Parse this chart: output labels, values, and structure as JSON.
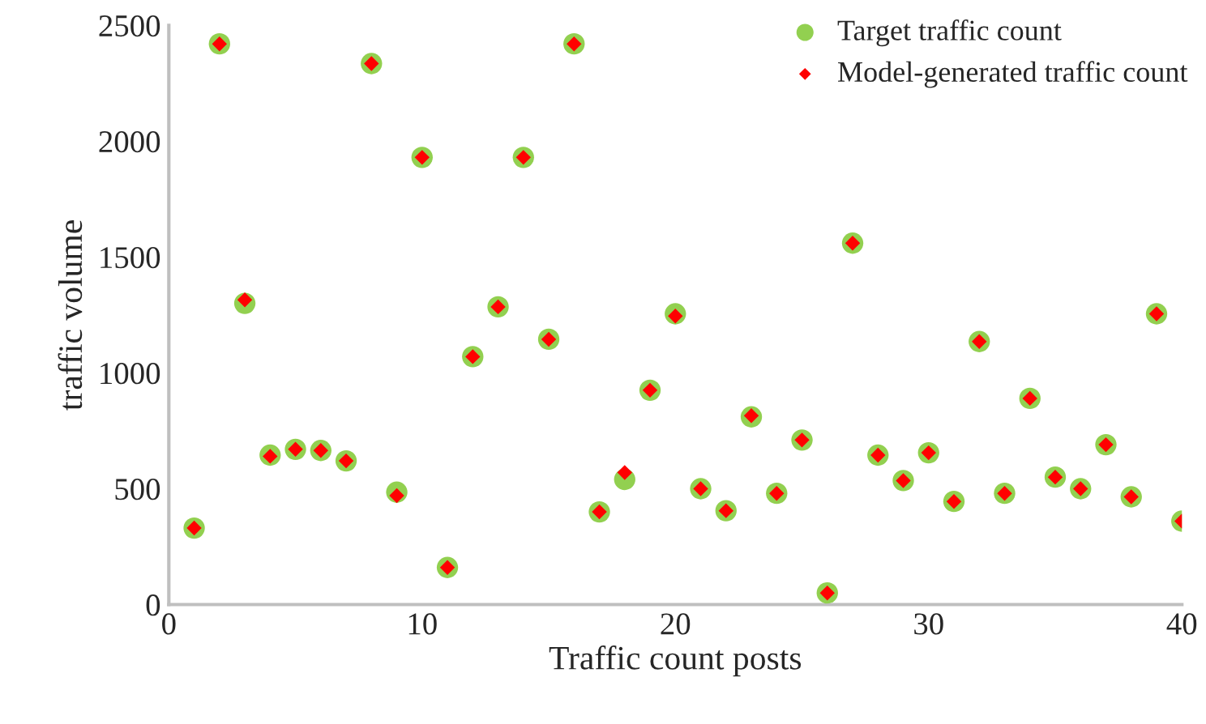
{
  "chart_data": {
    "type": "scatter",
    "xlabel": "Traffic count posts",
    "ylabel": "traffic volume",
    "x": [
      1,
      2,
      3,
      4,
      5,
      6,
      7,
      8,
      9,
      10,
      11,
      12,
      13,
      14,
      15,
      16,
      17,
      18,
      19,
      20,
      21,
      22,
      23,
      24,
      25,
      26,
      27,
      28,
      29,
      30,
      31,
      32,
      33,
      34,
      35,
      36,
      37,
      38,
      39,
      40
    ],
    "series": [
      {
        "name": "Target traffic count",
        "color": "#92d050",
        "marker": "circle",
        "values": [
          330,
          2420,
          1300,
          645,
          670,
          665,
          620,
          2335,
          485,
          1930,
          160,
          1070,
          1285,
          1930,
          1145,
          2420,
          400,
          540,
          925,
          1255,
          500,
          405,
          810,
          480,
          710,
          50,
          1560,
          645,
          535,
          655,
          445,
          1135,
          480,
          890,
          550,
          500,
          690,
          465,
          1255,
          360
        ]
      },
      {
        "name": "Model-generated traffic count",
        "color": "#ff0000",
        "marker": "diamond",
        "values": [
          330,
          2420,
          1315,
          640,
          670,
          665,
          620,
          2335,
          470,
          1930,
          160,
          1070,
          1285,
          1930,
          1145,
          2420,
          400,
          570,
          925,
          1245,
          500,
          405,
          815,
          480,
          710,
          50,
          1560,
          645,
          535,
          655,
          445,
          1135,
          480,
          890,
          550,
          500,
          690,
          465,
          1255,
          360
        ]
      }
    ],
    "xlim": [
      0,
      40
    ],
    "xticks": [
      0,
      10,
      20,
      30,
      40
    ],
    "ylim": [
      0,
      2500
    ],
    "yticks": [
      0,
      500,
      1000,
      1500,
      2000,
      2500
    ],
    "grid": false,
    "legend": "top right"
  }
}
